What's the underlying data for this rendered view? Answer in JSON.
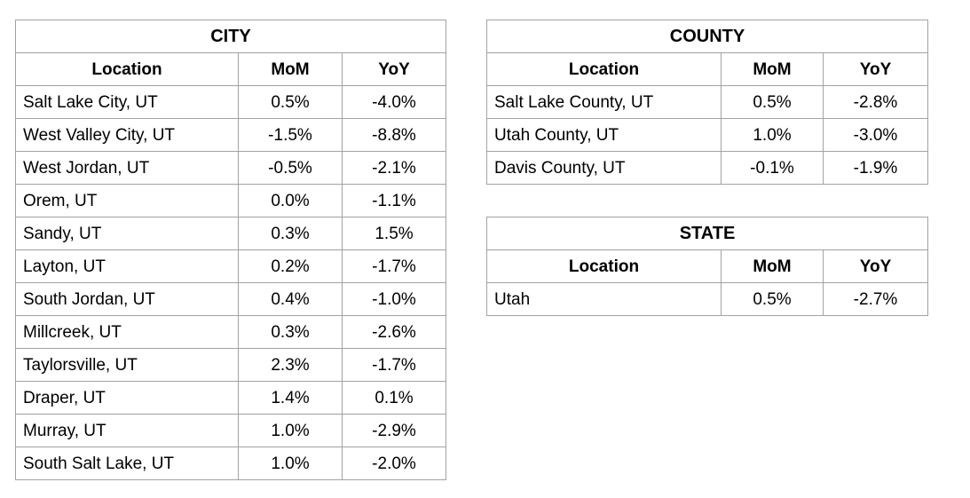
{
  "colors": {
    "background": "#ffffff",
    "table_border": "#a2a2a2",
    "text": "#000000"
  },
  "tables": {
    "city": {
      "title": "CITY",
      "columns": [
        "Location",
        "MoM",
        "YoY"
      ],
      "rows": [
        [
          "Salt Lake City, UT",
          "0.5%",
          "-4.0%"
        ],
        [
          "West Valley City, UT",
          "-1.5%",
          "-8.8%"
        ],
        [
          "West Jordan, UT",
          "-0.5%",
          "-2.1%"
        ],
        [
          "Orem, UT",
          "0.0%",
          "-1.1%"
        ],
        [
          "Sandy, UT",
          "0.3%",
          "1.5%"
        ],
        [
          "Layton, UT",
          "0.2%",
          "-1.7%"
        ],
        [
          "South Jordan, UT",
          "0.4%",
          "-1.0%"
        ],
        [
          "Millcreek, UT",
          "0.3%",
          "-2.6%"
        ],
        [
          "Taylorsville, UT",
          "2.3%",
          "-1.7%"
        ],
        [
          "Draper, UT",
          "1.4%",
          "0.1%"
        ],
        [
          "Murray, UT",
          "1.0%",
          "-2.9%"
        ],
        [
          "South Salt Lake, UT",
          "1.0%",
          "-2.0%"
        ]
      ]
    },
    "county": {
      "title": "COUNTY",
      "columns": [
        "Location",
        "MoM",
        "YoY"
      ],
      "rows": [
        [
          "Salt Lake County, UT",
          "0.5%",
          "-2.8%"
        ],
        [
          "Utah County, UT",
          "1.0%",
          "-3.0%"
        ],
        [
          "Davis County, UT",
          "-0.1%",
          "-1.9%"
        ]
      ]
    },
    "state": {
      "title": "STATE",
      "columns": [
        "Location",
        "MoM",
        "YoY"
      ],
      "rows": [
        [
          "Utah",
          "0.5%",
          "-2.7%"
        ]
      ]
    }
  }
}
